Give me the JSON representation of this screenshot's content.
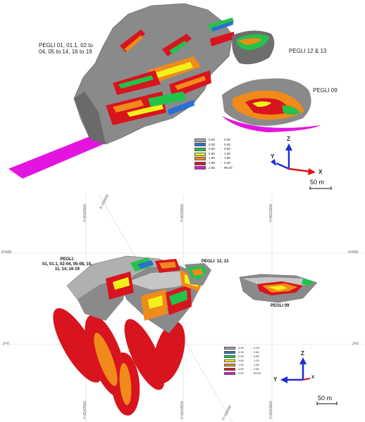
{
  "top_view": {
    "labels": {
      "pegli_main": [
        "PEGLI 01, 01.1, 02 to",
        "04, 05 to 14, 16 to 19"
      ],
      "pegli_12_13": "PEGLI 12 & 13",
      "pegli_09": "PEGLI 09"
    },
    "axes": {
      "z": "Z",
      "y": "Y",
      "x": "X"
    },
    "scale_bar": "50 m"
  },
  "bottom_view": {
    "labels": {
      "pegli_main": [
        "PEGLI:",
        "01, 01.1, 02-04, 05-08, 10,",
        "11, 14, 16-19"
      ],
      "pegli_12_13": "PEGLI: 12, 13",
      "pegli_09": "PEGLI 09"
    },
    "axes": {
      "z": "Z",
      "y": "Y",
      "x": "X"
    },
    "scale_bar": "50 m",
    "grid": {
      "z_top_left": "Z=500",
      "z_top_right": "Z=500",
      "z_zero_left": "Z=0",
      "z_zero_right": "Z=0",
      "v_top_1": "Y=8142500",
      "v_top_2": "X=160000",
      "v_top_3": "Y=8142000",
      "v_top_4": "Y=8141500",
      "v_bot_1": "Y=8142500",
      "v_bot_2": "Y=8142000",
      "v_bot_3": "X=160000",
      "v_bot_4": "Y=8141500"
    }
  },
  "legend": [
    {
      "low": "0.00",
      "high": "0.30",
      "color": "#a8a8a8"
    },
    {
      "low": "0.30",
      "high": "0.50",
      "color": "#2a6fd6"
    },
    {
      "low": "0.50",
      "high": "0.80",
      "color": "#22c34a"
    },
    {
      "low": "0.80",
      "high": "1.00",
      "color": "#f2f21a"
    },
    {
      "low": "1.00",
      "high": "1.50",
      "color": "#f08a1a"
    },
    {
      "low": "1.50",
      "high": "2.50",
      "color": "#d8141e"
    },
    {
      "low": "2.50",
      "high": "99.00",
      "color": "#e414e0"
    }
  ],
  "colors": {
    "rock_gray": "#8a8a8a",
    "rock_dark": "#6e6e6e",
    "axis_blue": "#1a2fd0",
    "axis_red": "#e0141a"
  }
}
